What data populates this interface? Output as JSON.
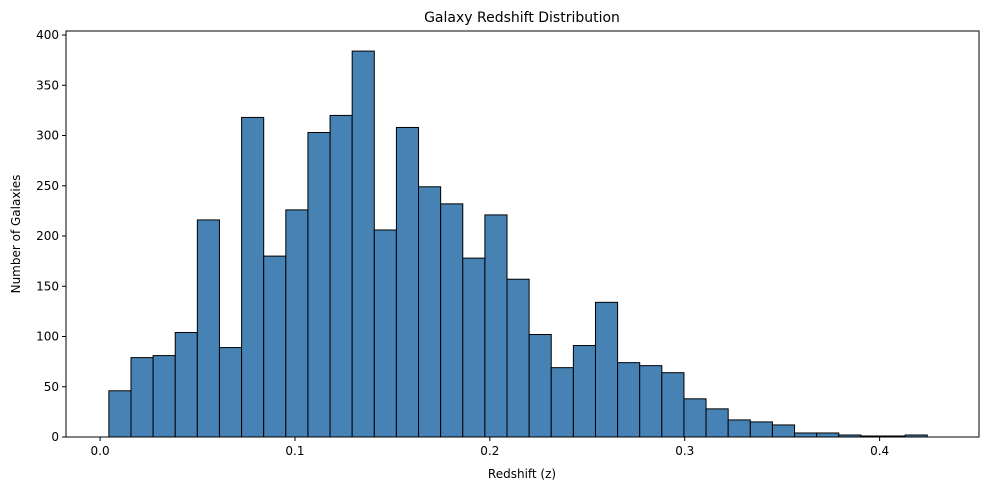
{
  "chart_data": {
    "type": "bar",
    "title": "Galaxy Redshift Distribution",
    "xlabel": "Redshift (z)",
    "ylabel": "Number of Galaxies",
    "xlim": [
      -0.0175,
      0.451
    ],
    "ylim": [
      0,
      404
    ],
    "x_ticks": [
      0.0,
      0.1,
      0.2,
      0.3,
      0.4
    ],
    "x_tick_labels": [
      "0.0",
      "0.1",
      "0.2",
      "0.3",
      "0.4"
    ],
    "y_ticks": [
      0,
      50,
      100,
      150,
      200,
      250,
      300,
      350,
      400
    ],
    "y_tick_labels": [
      "0",
      "50",
      "100",
      "150",
      "200",
      "250",
      "300",
      "350",
      "400"
    ],
    "bin_start": 0.0045,
    "bin_width": 0.01135,
    "values": [
      46,
      79,
      81,
      104,
      216,
      89,
      318,
      180,
      226,
      303,
      320,
      384,
      206,
      308,
      249,
      232,
      178,
      221,
      157,
      102,
      69,
      91,
      134,
      74,
      71,
      64,
      38,
      28,
      17,
      15,
      12,
      4,
      4,
      2,
      1,
      1,
      2
    ],
    "bar_color": "#4682b4",
    "edge_color": "#000000",
    "grid": false
  }
}
